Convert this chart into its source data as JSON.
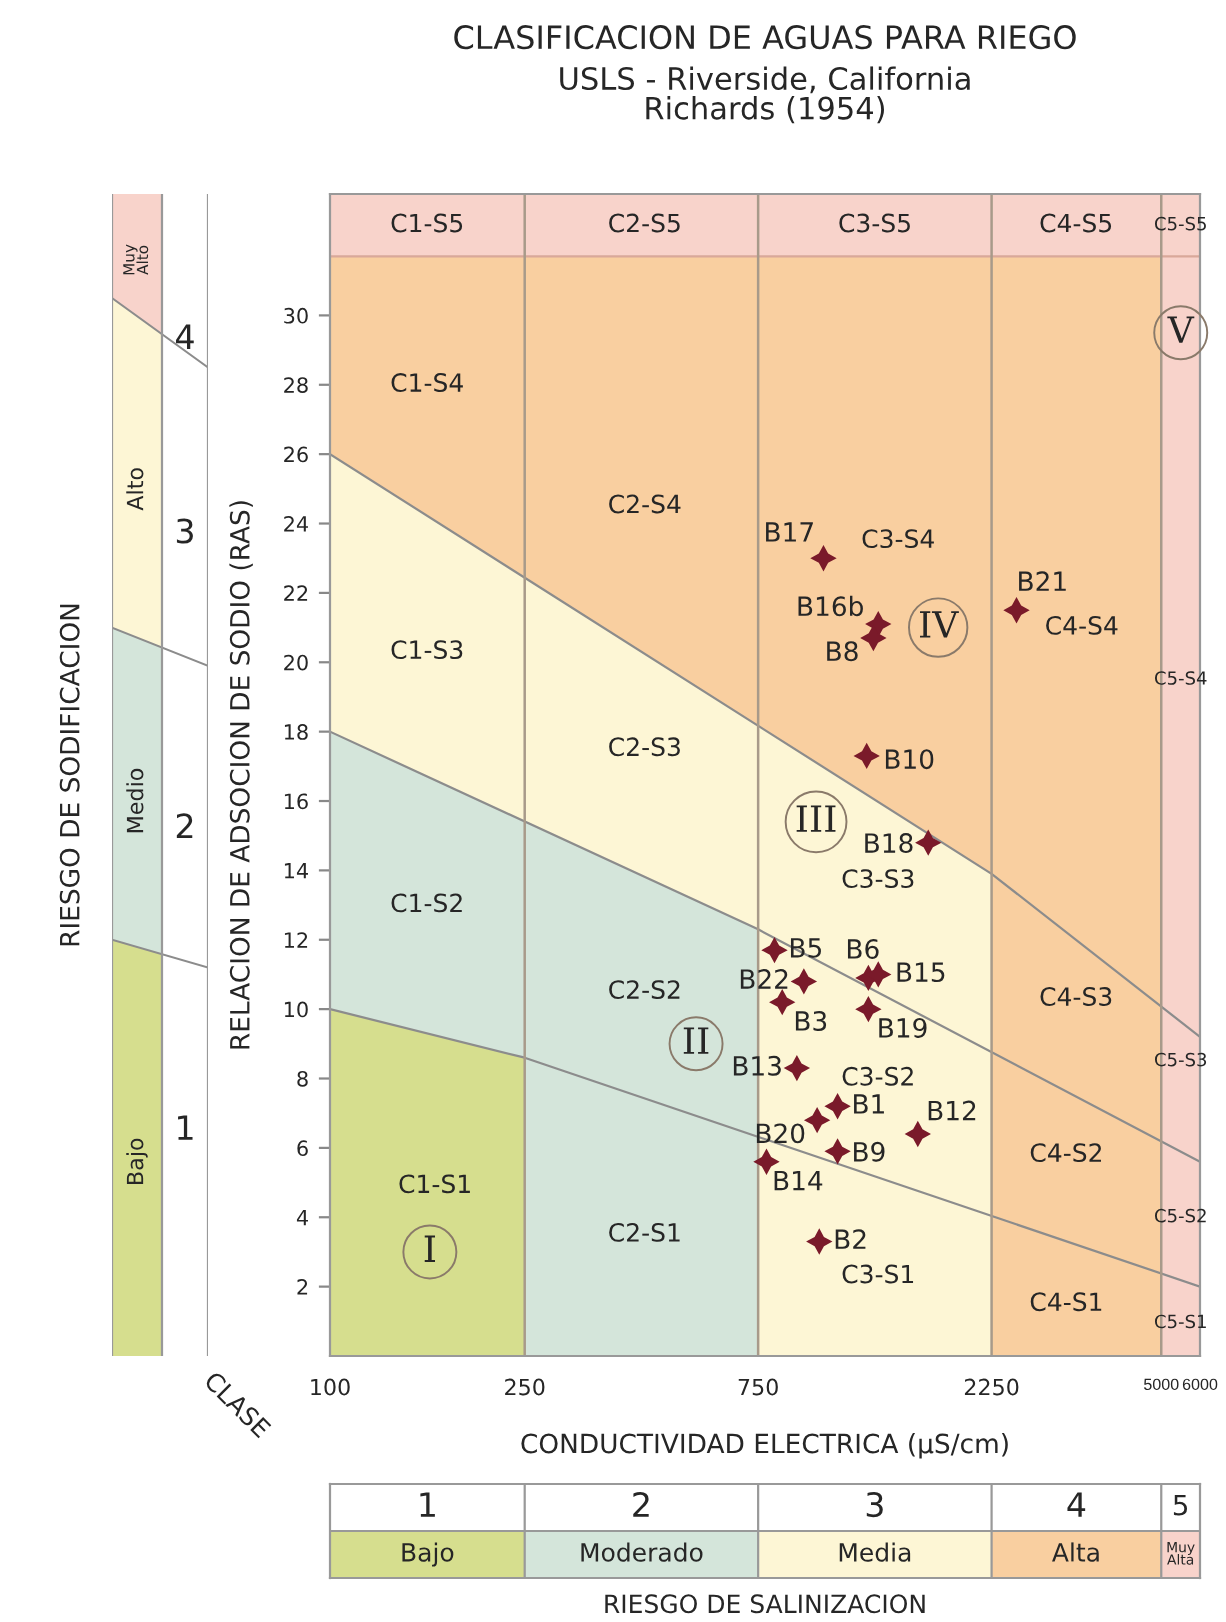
{
  "chart_data": {
    "type": "scatter",
    "title": "CLASIFICACION DE AGUAS PARA RIEGO",
    "subtitle": "USLS - Riverside, California\nRichards (1954)",
    "xlabel": "CONDUCTIVIDAD ELECTRICA (µS/cm)",
    "ylabel": "RELACION DE ADSOCION DE SODIO (RAS)",
    "log": "x",
    "xlim": [
      100,
      6000
    ],
    "ylim": [
      0,
      33.5
    ],
    "xticks": [
      100,
      250,
      750,
      2250,
      5000,
      6000
    ],
    "yticks": [
      2,
      4,
      6,
      8,
      10,
      12,
      14,
      16,
      18,
      20,
      22,
      24,
      26,
      28,
      30
    ],
    "series": [
      {
        "type": "line",
        "color": "#8c8c8c",
        "x": [
          100,
          250,
          6000
        ],
        "values": [
          10,
          8.6,
          2.0
        ]
      },
      {
        "type": "line",
        "color": "#8c8c8c",
        "x": [
          100,
          750,
          6000
        ],
        "values": [
          18,
          12.3,
          5.6
        ]
      },
      {
        "type": "line",
        "color": "#8c8c8c",
        "x": [
          100,
          2250,
          6000
        ],
        "values": [
          26,
          13.9,
          9.2
        ]
      },
      {
        "type": "line",
        "color": "#d9a89a",
        "x": [
          100,
          6000
        ],
        "values": [
          31.7,
          31.7
        ]
      },
      {
        "color": "#7a1a2a",
        "marker": "star",
        "x": [
          1020,
          1320,
          1290,
          2530,
          1250,
          1670,
          810,
          930,
          840,
          1260,
          1320,
          1260,
          900,
          1090,
          990,
          1590,
          1090,
          780,
          1000
        ],
        "values": [
          23.0,
          21.1,
          20.7,
          21.5,
          17.3,
          14.8,
          11.7,
          10.8,
          10.2,
          10.9,
          11.0,
          10.0,
          8.3,
          7.2,
          6.8,
          6.4,
          5.9,
          5.6,
          3.3
        ]
      }
    ],
    "ref_lines": [
      {
        "axis": "x",
        "value": 250,
        "color": "#a89a8a"
      },
      {
        "axis": "x",
        "value": 750,
        "color": "#a89a8a"
      },
      {
        "axis": "x",
        "value": 2250,
        "color": "#a89a8a"
      },
      {
        "axis": "x",
        "value": 5000,
        "color": "#a89a8a"
      }
    ],
    "annotations": [
      "B17",
      "B16b",
      "B8",
      "B21",
      "B10",
      "B18",
      "B5",
      "B22",
      "B3",
      "B6",
      "B15",
      "B19",
      "B13",
      "B1",
      "B20",
      "B12",
      "B9",
      "B14",
      "B2",
      "C1-S5",
      "C2-S5",
      "C3-S5",
      "C4-S5",
      "C5-S5",
      "C1-S4",
      "C2-S4",
      "C3-S4",
      "C4-S4",
      "C5-S4",
      "C1-S3",
      "C2-S3",
      "C3-S3",
      "C4-S3",
      "C5-S3",
      "C1-S2",
      "C2-S2",
      "C3-S2",
      "C4-S2",
      "C5-S2",
      "C1-S1",
      "C2-S1",
      "C3-S1",
      "C4-S1",
      "C5-S1",
      "I",
      "II",
      "III",
      "IV",
      "V",
      "RIESGO DE SODIFICACION",
      "4",
      "3",
      "2",
      "1",
      "Muy\nAlto",
      "Alto",
      "Medio",
      "Bajo",
      "CLASE",
      "1",
      "2",
      "3",
      "4",
      "5",
      "Bajo",
      "Moderado",
      "Media",
      "Alta",
      "Muy\nAlta",
      "RIESGO DE SALINIZACION"
    ]
  }
}
